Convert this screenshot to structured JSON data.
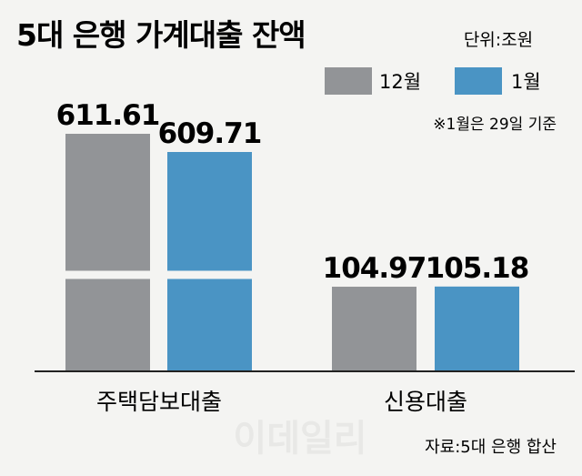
{
  "chart_data": {
    "type": "bar",
    "title": "5대 은행 가계대출 잔액",
    "unit": "단위:조원",
    "note": "※1월은 29일 기준",
    "source": "자료:5대 은행 합산",
    "watermark": "이데일리",
    "categories": [
      "주택담보대출",
      "신용대출"
    ],
    "series": [
      {
        "name": "12월",
        "color": "#929497",
        "values": [
          611.61,
          104.97
        ],
        "labels": [
          "611.61",
          "104.97"
        ]
      },
      {
        "name": "1월",
        "color": "#4a94c4",
        "values": [
          609.71,
          105.18
        ],
        "labels": [
          "609.71",
          "105.18"
        ]
      }
    ],
    "axis_break": true
  }
}
